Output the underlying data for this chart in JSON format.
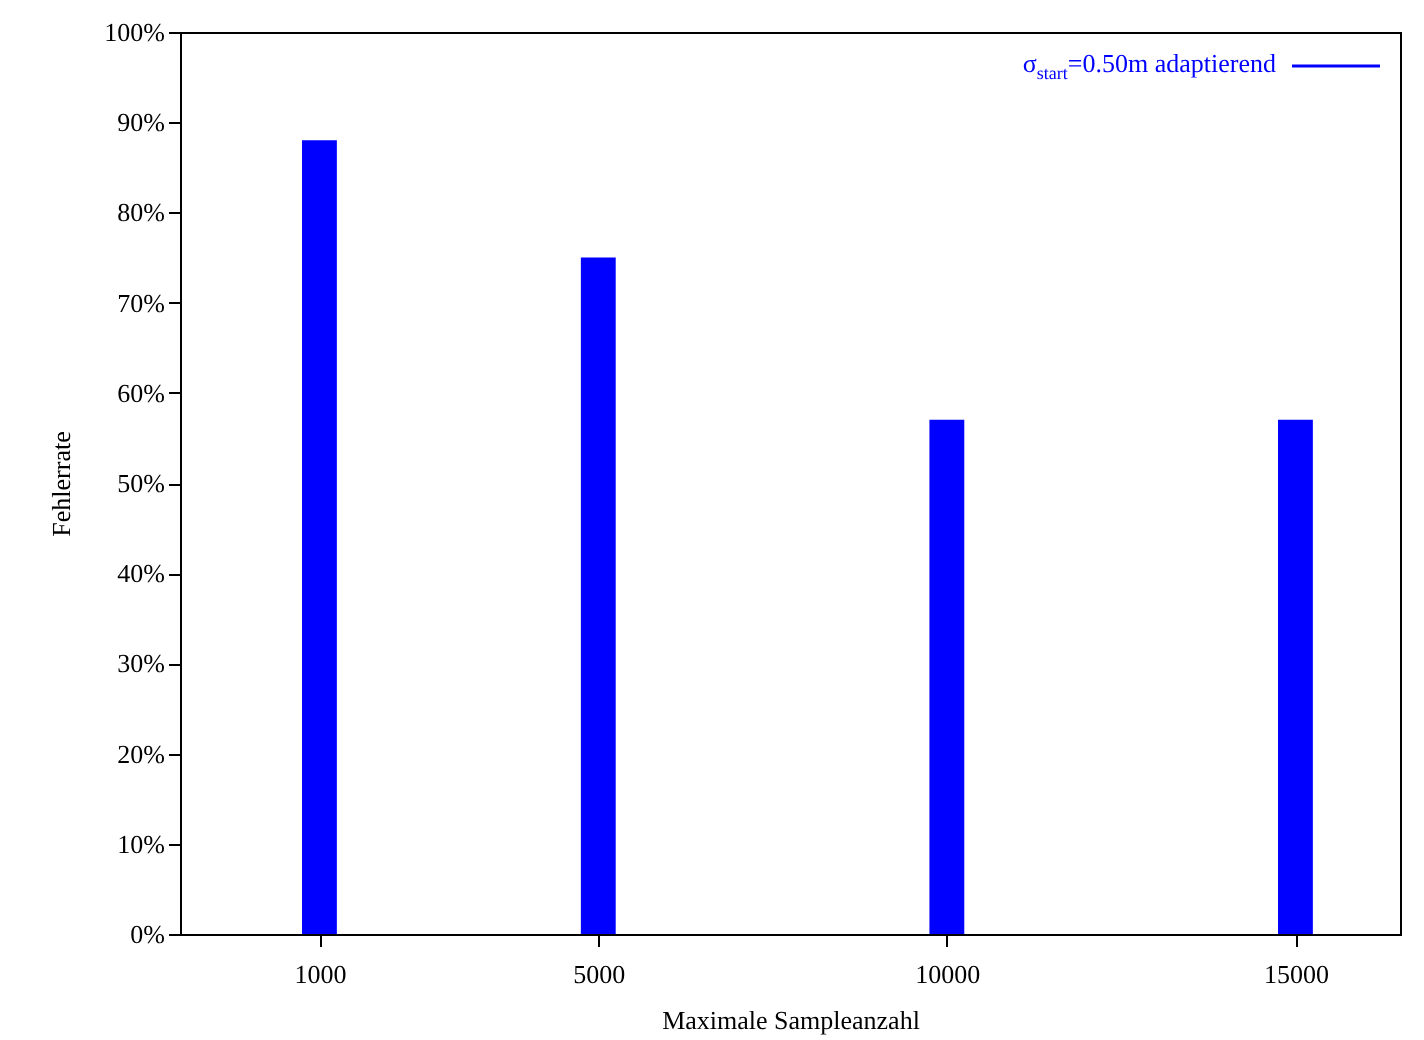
{
  "chart_data": {
    "type": "bar",
    "xlabel": "Maximale Sampleanzahl",
    "ylabel": "Fehlerrate",
    "x": [
      1000,
      5000,
      10000,
      15000
    ],
    "series": [
      {
        "name": "σ$_{start}$=0.50m adaptierend",
        "color": "#0000ff",
        "values": [
          88,
          75,
          57,
          57
        ]
      }
    ],
    "xlim": [
      -1000,
      16500
    ],
    "xticks": [
      1000,
      5000,
      10000,
      15000
    ],
    "ylim": [
      0,
      100
    ],
    "yticks": [
      {
        "value": 0,
        "label": "0%"
      },
      {
        "value": 10,
        "label": "10%"
      },
      {
        "value": 20,
        "label": "20%"
      },
      {
        "value": 30,
        "label": "30%"
      },
      {
        "value": 40,
        "label": "40%"
      },
      {
        "value": 50,
        "label": "50%"
      },
      {
        "value": 60,
        "label": "60%"
      },
      {
        "value": 70,
        "label": "70%"
      },
      {
        "value": 80,
        "label": "80%"
      },
      {
        "value": 90,
        "label": "90%"
      },
      {
        "value": 100,
        "label": "100%"
      }
    ],
    "legend": "top right"
  }
}
